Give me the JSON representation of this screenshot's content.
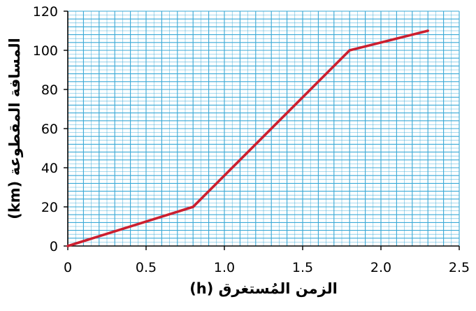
{
  "chart_data": {
    "type": "line",
    "title": "",
    "xlabel": "الزمن المُستغرق (h)",
    "ylabel": "المسافة المقطوعة (km)",
    "xlim": [
      0,
      2.5
    ],
    "ylim": [
      0,
      120
    ],
    "xticks": [
      0,
      0.5,
      1.0,
      1.5,
      2.0,
      2.5
    ],
    "xtick_labels": [
      "0",
      "0.5",
      "1.0",
      "1.5",
      "2.0",
      "2.5"
    ],
    "yticks": [
      0,
      20,
      40,
      60,
      80,
      100,
      120
    ],
    "ytick_labels": [
      "0",
      "20",
      "40",
      "60",
      "80",
      "100",
      "120"
    ],
    "grid": true,
    "grid_color": "#39a9d6",
    "line_color": "#cc1f2f",
    "axis_color": "#000000",
    "series": [
      {
        "x": [
          0,
          0.8,
          1.8,
          2.3
        ],
        "y": [
          0,
          20,
          100,
          110
        ]
      }
    ]
  }
}
